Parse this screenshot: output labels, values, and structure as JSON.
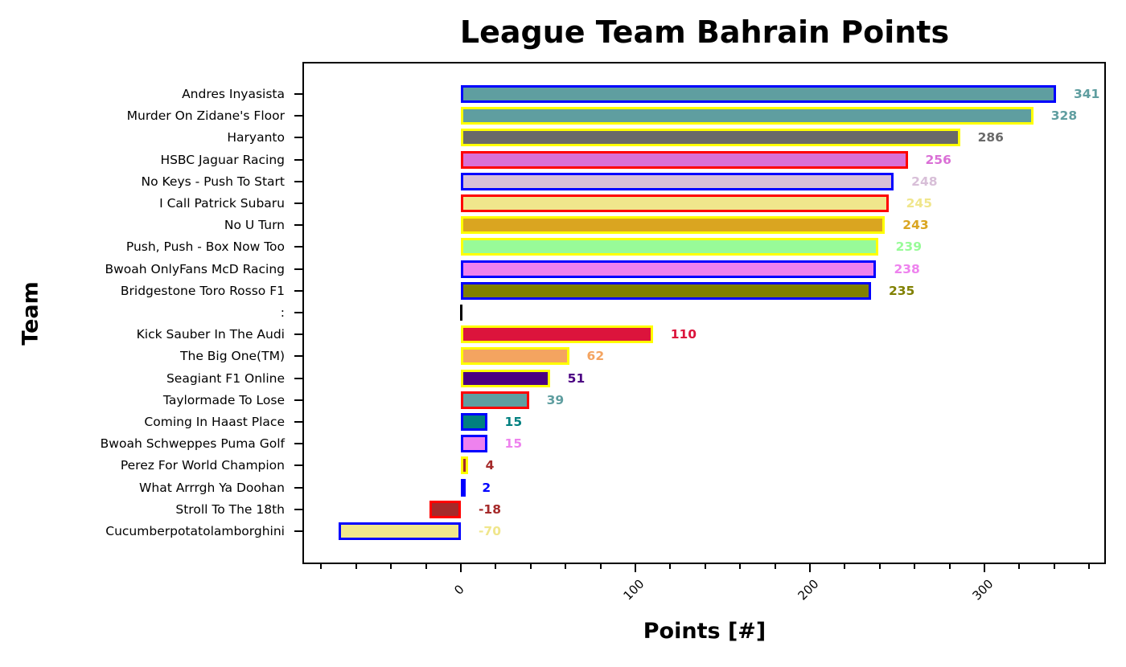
{
  "chart_data": {
    "type": "bar",
    "orientation": "horizontal",
    "title": "League Team Bahrain Points",
    "xlabel": "Points [#]",
    "ylabel": "Team",
    "xlim": [
      -80,
      361
    ],
    "xticks": [
      0,
      100,
      200,
      300
    ],
    "xtick_labels": [
      "0",
      "100",
      "200",
      "300"
    ],
    "xtick_rotation": 45,
    "grid": false,
    "legend": null,
    "categories": [
      "Andres Inyasista",
      "Murder On Zidane's Floor",
      "Haryanto",
      "HSBC Jaguar Racing",
      "No Keys - Push To Start",
      "I Call Patrick Subaru",
      "No U Turn",
      "Push, Push - Box Now Too",
      "Bwoah OnlyFans McD Racing",
      "Bridgestone Toro Rosso F1",
      ":",
      "Kick Sauber In The Audi",
      "The Big One(TM)",
      "Seagiant F1 Online",
      "Taylormade To Lose",
      "Coming In Haast Place",
      "Bwoah Schweppes Puma Golf",
      "Perez For World Champion",
      "What Arrrgh Ya Doohan",
      "Stroll To The 18th",
      "Cucumberpotatolamborghini"
    ],
    "values": [
      341,
      328,
      286,
      256,
      248,
      245,
      243,
      239,
      238,
      235,
      0,
      110,
      62,
      51,
      39,
      15,
      15,
      4,
      2,
      -18,
      -70
    ],
    "value_labels": [
      "341",
      "328",
      "286",
      "256",
      "248",
      "245",
      "243",
      "239",
      "238",
      "235",
      "",
      "110",
      "62",
      "51",
      "39",
      "15",
      "15",
      "4",
      "2",
      "-18",
      "-70"
    ],
    "fill_colors": [
      "#5f9ea0",
      "#5f9ea0",
      "#696969",
      "#da70d6",
      "#d8bfd8",
      "#f0e68c",
      "#daa520",
      "#98fb98",
      "#ee82ee",
      "#808000",
      "#000000",
      "#dc143c",
      "#f4a460",
      "#4b0082",
      "#5f9ea0",
      "#008080",
      "#ee82ee",
      "#a52a2a",
      "#0000ff",
      "#a52a2a",
      "#f0e68c"
    ],
    "edge_colors": [
      "#0000ff",
      "#ffff00",
      "#ffff00",
      "#ff0000",
      "#0000ff",
      "#ff0000",
      "#ffff00",
      "#ffff00",
      "#0000ff",
      "#0000ff",
      "#000000",
      "#ffff00",
      "#ffff00",
      "#ffff00",
      "#ff0000",
      "#0000ff",
      "#0000ff",
      "#ffff00",
      "#0000ff",
      "#ff0000",
      "#0000ff"
    ]
  }
}
